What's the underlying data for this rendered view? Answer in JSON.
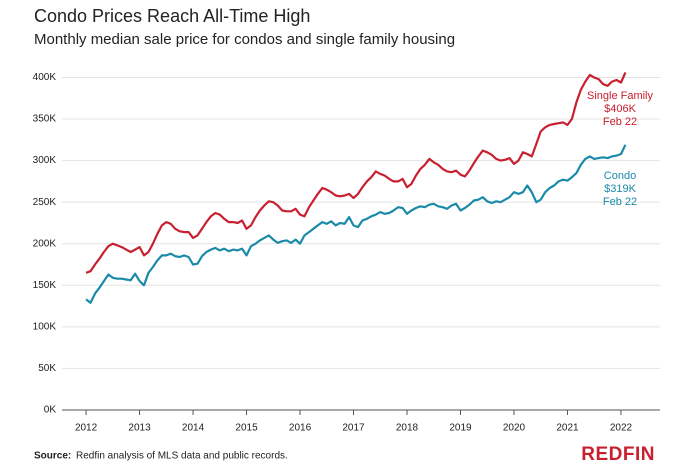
{
  "chart_data": {
    "type": "line",
    "title": "Condo Prices Reach All-Time High",
    "subtitle": "Monthly median sale price for condos and single family housing",
    "x": [
      2012,
      2012.083,
      2012.167,
      2012.25,
      2012.333,
      2012.417,
      2012.5,
      2012.583,
      2012.667,
      2012.75,
      2012.833,
      2012.917,
      2013,
      2013.083,
      2013.167,
      2013.25,
      2013.333,
      2013.417,
      2013.5,
      2013.583,
      2013.667,
      2013.75,
      2013.833,
      2013.917,
      2014,
      2014.083,
      2014.167,
      2014.25,
      2014.333,
      2014.417,
      2014.5,
      2014.583,
      2014.667,
      2014.75,
      2014.833,
      2014.917,
      2015,
      2015.083,
      2015.167,
      2015.25,
      2015.333,
      2015.417,
      2015.5,
      2015.583,
      2015.667,
      2015.75,
      2015.833,
      2015.917,
      2016,
      2016.083,
      2016.167,
      2016.25,
      2016.333,
      2016.417,
      2016.5,
      2016.583,
      2016.667,
      2016.75,
      2016.833,
      2016.917,
      2017,
      2017.083,
      2017.167,
      2017.25,
      2017.333,
      2017.417,
      2017.5,
      2017.583,
      2017.667,
      2017.75,
      2017.833,
      2017.917,
      2018,
      2018.083,
      2018.167,
      2018.25,
      2018.333,
      2018.417,
      2018.5,
      2018.583,
      2018.667,
      2018.75,
      2018.833,
      2018.917,
      2019,
      2019.083,
      2019.167,
      2019.25,
      2019.333,
      2019.417,
      2019.5,
      2019.583,
      2019.667,
      2019.75,
      2019.833,
      2019.917,
      2020,
      2020.083,
      2020.167,
      2020.25,
      2020.333,
      2020.417,
      2020.5,
      2020.583,
      2020.667,
      2020.75,
      2020.833,
      2020.917,
      2021,
      2021.083,
      2021.167,
      2021.25,
      2021.333,
      2021.417,
      2021.5,
      2021.583,
      2021.667,
      2021.75,
      2021.833,
      2021.917,
      2022,
      2022.083
    ],
    "series": [
      {
        "name": "Single Family",
        "color": "#c8202f",
        "label_lines": [
          "$406K",
          "Feb 22"
        ],
        "values": [
          165000,
          167000,
          175000,
          182000,
          190000,
          197000,
          200000,
          198000,
          196000,
          193000,
          190000,
          193000,
          196000,
          186000,
          190000,
          200000,
          212000,
          222000,
          226000,
          224000,
          218000,
          215000,
          214000,
          214000,
          207000,
          210000,
          218000,
          226000,
          233000,
          237000,
          235000,
          230000,
          226000,
          226000,
          225000,
          228000,
          218000,
          222000,
          232000,
          240000,
          246000,
          251000,
          250000,
          246000,
          240000,
          239000,
          239000,
          242000,
          235000,
          233000,
          244000,
          252000,
          260000,
          267000,
          265000,
          262000,
          258000,
          257000,
          258000,
          260000,
          255000,
          260000,
          268000,
          275000,
          280000,
          287000,
          284000,
          282000,
          278000,
          275000,
          275000,
          278000,
          268000,
          272000,
          282000,
          290000,
          295000,
          302000,
          298000,
          295000,
          290000,
          287000,
          286000,
          288000,
          283000,
          281000,
          288000,
          297000,
          305000,
          312000,
          310000,
          307000,
          302000,
          300000,
          301000,
          303000,
          296000,
          300000,
          310000,
          308000,
          305000,
          320000,
          335000,
          340000,
          343000,
          344000,
          345000,
          346000,
          343000,
          350000,
          370000,
          385000,
          395000,
          403000,
          400000,
          398000,
          392000,
          390000,
          395000,
          397000,
          394000,
          406000
        ]
      },
      {
        "name": "Condo",
        "color": "#1a8aa8",
        "label_lines": [
          "$319K",
          "Feb 22"
        ],
        "values": [
          133000,
          129000,
          140000,
          147000,
          155000,
          163000,
          159000,
          158000,
          158000,
          157000,
          156000,
          164000,
          155000,
          150000,
          165000,
          172000,
          180000,
          186000,
          186000,
          188000,
          185000,
          184000,
          186000,
          184000,
          175000,
          176000,
          185000,
          190000,
          193000,
          195000,
          192000,
          194000,
          191000,
          193000,
          192000,
          194000,
          186000,
          197000,
          200000,
          204000,
          207000,
          210000,
          205000,
          201000,
          203000,
          204000,
          201000,
          205000,
          200000,
          210000,
          214000,
          218000,
          222000,
          226000,
          224000,
          227000,
          222000,
          225000,
          224000,
          232000,
          222000,
          220000,
          228000,
          230000,
          233000,
          235000,
          238000,
          236000,
          237000,
          240000,
          244000,
          243000,
          236000,
          240000,
          243000,
          245000,
          244000,
          247000,
          248000,
          245000,
          244000,
          242000,
          246000,
          248000,
          240000,
          243000,
          247000,
          252000,
          253000,
          256000,
          251000,
          249000,
          251000,
          250000,
          253000,
          256000,
          262000,
          260000,
          262000,
          270000,
          262000,
          250000,
          253000,
          262000,
          267000,
          270000,
          275000,
          277000,
          276000,
          280000,
          285000,
          295000,
          302000,
          305000,
          302000,
          303000,
          304000,
          303000,
          305000,
          306000,
          308000,
          319000
        ]
      }
    ],
    "xlim": [
      2011.55,
      2022.73
    ],
    "xticks": [
      2012,
      2013,
      2014,
      2015,
      2016,
      2017,
      2018,
      2019,
      2020,
      2021,
      2022
    ],
    "ylim": [
      0,
      415000
    ],
    "yticks": [
      {
        "value": 0,
        "label": "0K"
      },
      {
        "value": 50000,
        "label": "50K"
      },
      {
        "value": 100000,
        "label": "100K"
      },
      {
        "value": 150000,
        "label": "150K"
      },
      {
        "value": 200000,
        "label": "200K"
      },
      {
        "value": 250000,
        "label": "250K"
      },
      {
        "value": 300000,
        "label": "300K"
      },
      {
        "value": 350000,
        "label": "350K"
      },
      {
        "value": 400000,
        "label": "400K"
      }
    ],
    "grid": true,
    "source_label": "Source:",
    "source_text": "Redfin analysis of MLS data and public records.",
    "brand": "REDFIN"
  }
}
